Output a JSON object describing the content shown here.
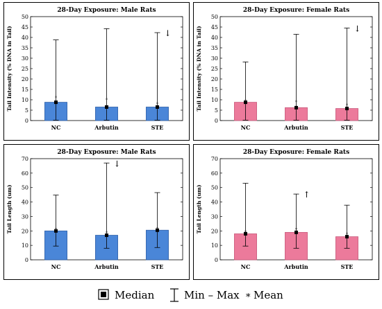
{
  "colors": {
    "male": "#4a86d8",
    "male_edge": "#2d5fa8",
    "female": "#ec7a9b",
    "female_edge": "#c95a7c"
  },
  "chart_data": [
    {
      "type": "bar",
      "title": "28-Day Exposure: Male Rats",
      "ylabel": "Tail Intensity (% DNA in Tail)",
      "xlabel": "",
      "ylim": [
        0,
        50
      ],
      "yticks": [
        0,
        5,
        10,
        15,
        20,
        25,
        30,
        35,
        40,
        45,
        50
      ],
      "categories": [
        "NC",
        "Arbutin",
        "STE"
      ],
      "median": [
        8.8,
        6.5,
        6.5
      ],
      "min": [
        0.2,
        0.2,
        0.2
      ],
      "max": [
        38.8,
        44.2,
        42.3
      ],
      "mean": [
        11.2,
        10.2,
        8.2
      ],
      "arrows": [
        "",
        "",
        "↓"
      ],
      "color": "male"
    },
    {
      "type": "bar",
      "title": "28-Day Exposure: Female Rats",
      "ylabel": "Tail Intensity (% DNA in Tail)",
      "xlabel": "",
      "ylim": [
        0,
        50
      ],
      "yticks": [
        0,
        5,
        10,
        15,
        20,
        25,
        30,
        35,
        40,
        45,
        50
      ],
      "categories": [
        "NC",
        "Arbutin",
        "STE"
      ],
      "median": [
        8.8,
        6.2,
        5.8
      ],
      "min": [
        0.2,
        0.2,
        0.2
      ],
      "max": [
        28.2,
        41.5,
        44.5
      ],
      "mean": [
        9.5,
        9.0,
        7.5
      ],
      "arrows": [
        "",
        "",
        "↓"
      ],
      "color": "female"
    },
    {
      "type": "bar",
      "title": "28-Day Exposure: Male Rats",
      "ylabel": "Tail Length (um)",
      "xlabel": "",
      "ylim": [
        0,
        70
      ],
      "yticks": [
        0,
        10,
        20,
        30,
        40,
        50,
        60,
        70
      ],
      "categories": [
        "NC",
        "Arbutin",
        "STE"
      ],
      "median": [
        20.0,
        17.0,
        20.5
      ],
      "min": [
        9.5,
        8.0,
        8.5
      ],
      "max": [
        44.8,
        67.0,
        46.5
      ],
      "mean": [
        21.0,
        19.0,
        21.5
      ],
      "arrows": [
        "",
        "↓",
        ""
      ],
      "color": "male"
    },
    {
      "type": "bar",
      "title": "28-Day Exposure: Female Rats",
      "ylabel": "Tail Length (um)",
      "xlabel": "",
      "ylim": [
        0,
        70
      ],
      "yticks": [
        0,
        10,
        20,
        30,
        40,
        50,
        60,
        70
      ],
      "categories": [
        "NC",
        "Arbutin",
        "STE"
      ],
      "median": [
        18.0,
        19.0,
        16.0
      ],
      "min": [
        9.5,
        8.0,
        8.0
      ],
      "max": [
        53.0,
        45.5,
        37.8
      ],
      "mean": [
        19.5,
        21.0,
        18.0
      ],
      "arrows": [
        "",
        "↑",
        ""
      ],
      "color": "female"
    }
  ],
  "legend": {
    "median_label": "Median",
    "minmax_label": "Min – Max",
    "mean_label": "Mean",
    "mean_symbol": "*"
  }
}
